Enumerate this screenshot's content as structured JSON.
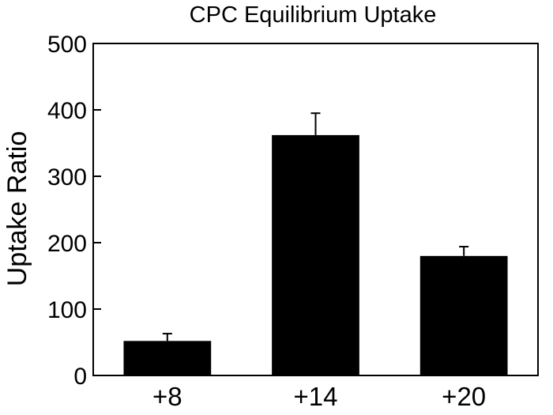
{
  "chart_data": {
    "type": "bar",
    "title": "CPC Equilibrium Uptake",
    "ylabel": "Uptake Ratio",
    "xlabel": "",
    "categories": [
      "+8",
      "+14",
      "+20"
    ],
    "values": [
      52,
      362,
      180
    ],
    "errors": [
      11,
      33,
      14
    ],
    "ylim": [
      0,
      500
    ],
    "yticks": [
      0,
      100,
      200,
      300,
      400,
      500
    ],
    "grid": false,
    "colors": {
      "bar": "#000000",
      "axis": "#000000"
    }
  }
}
